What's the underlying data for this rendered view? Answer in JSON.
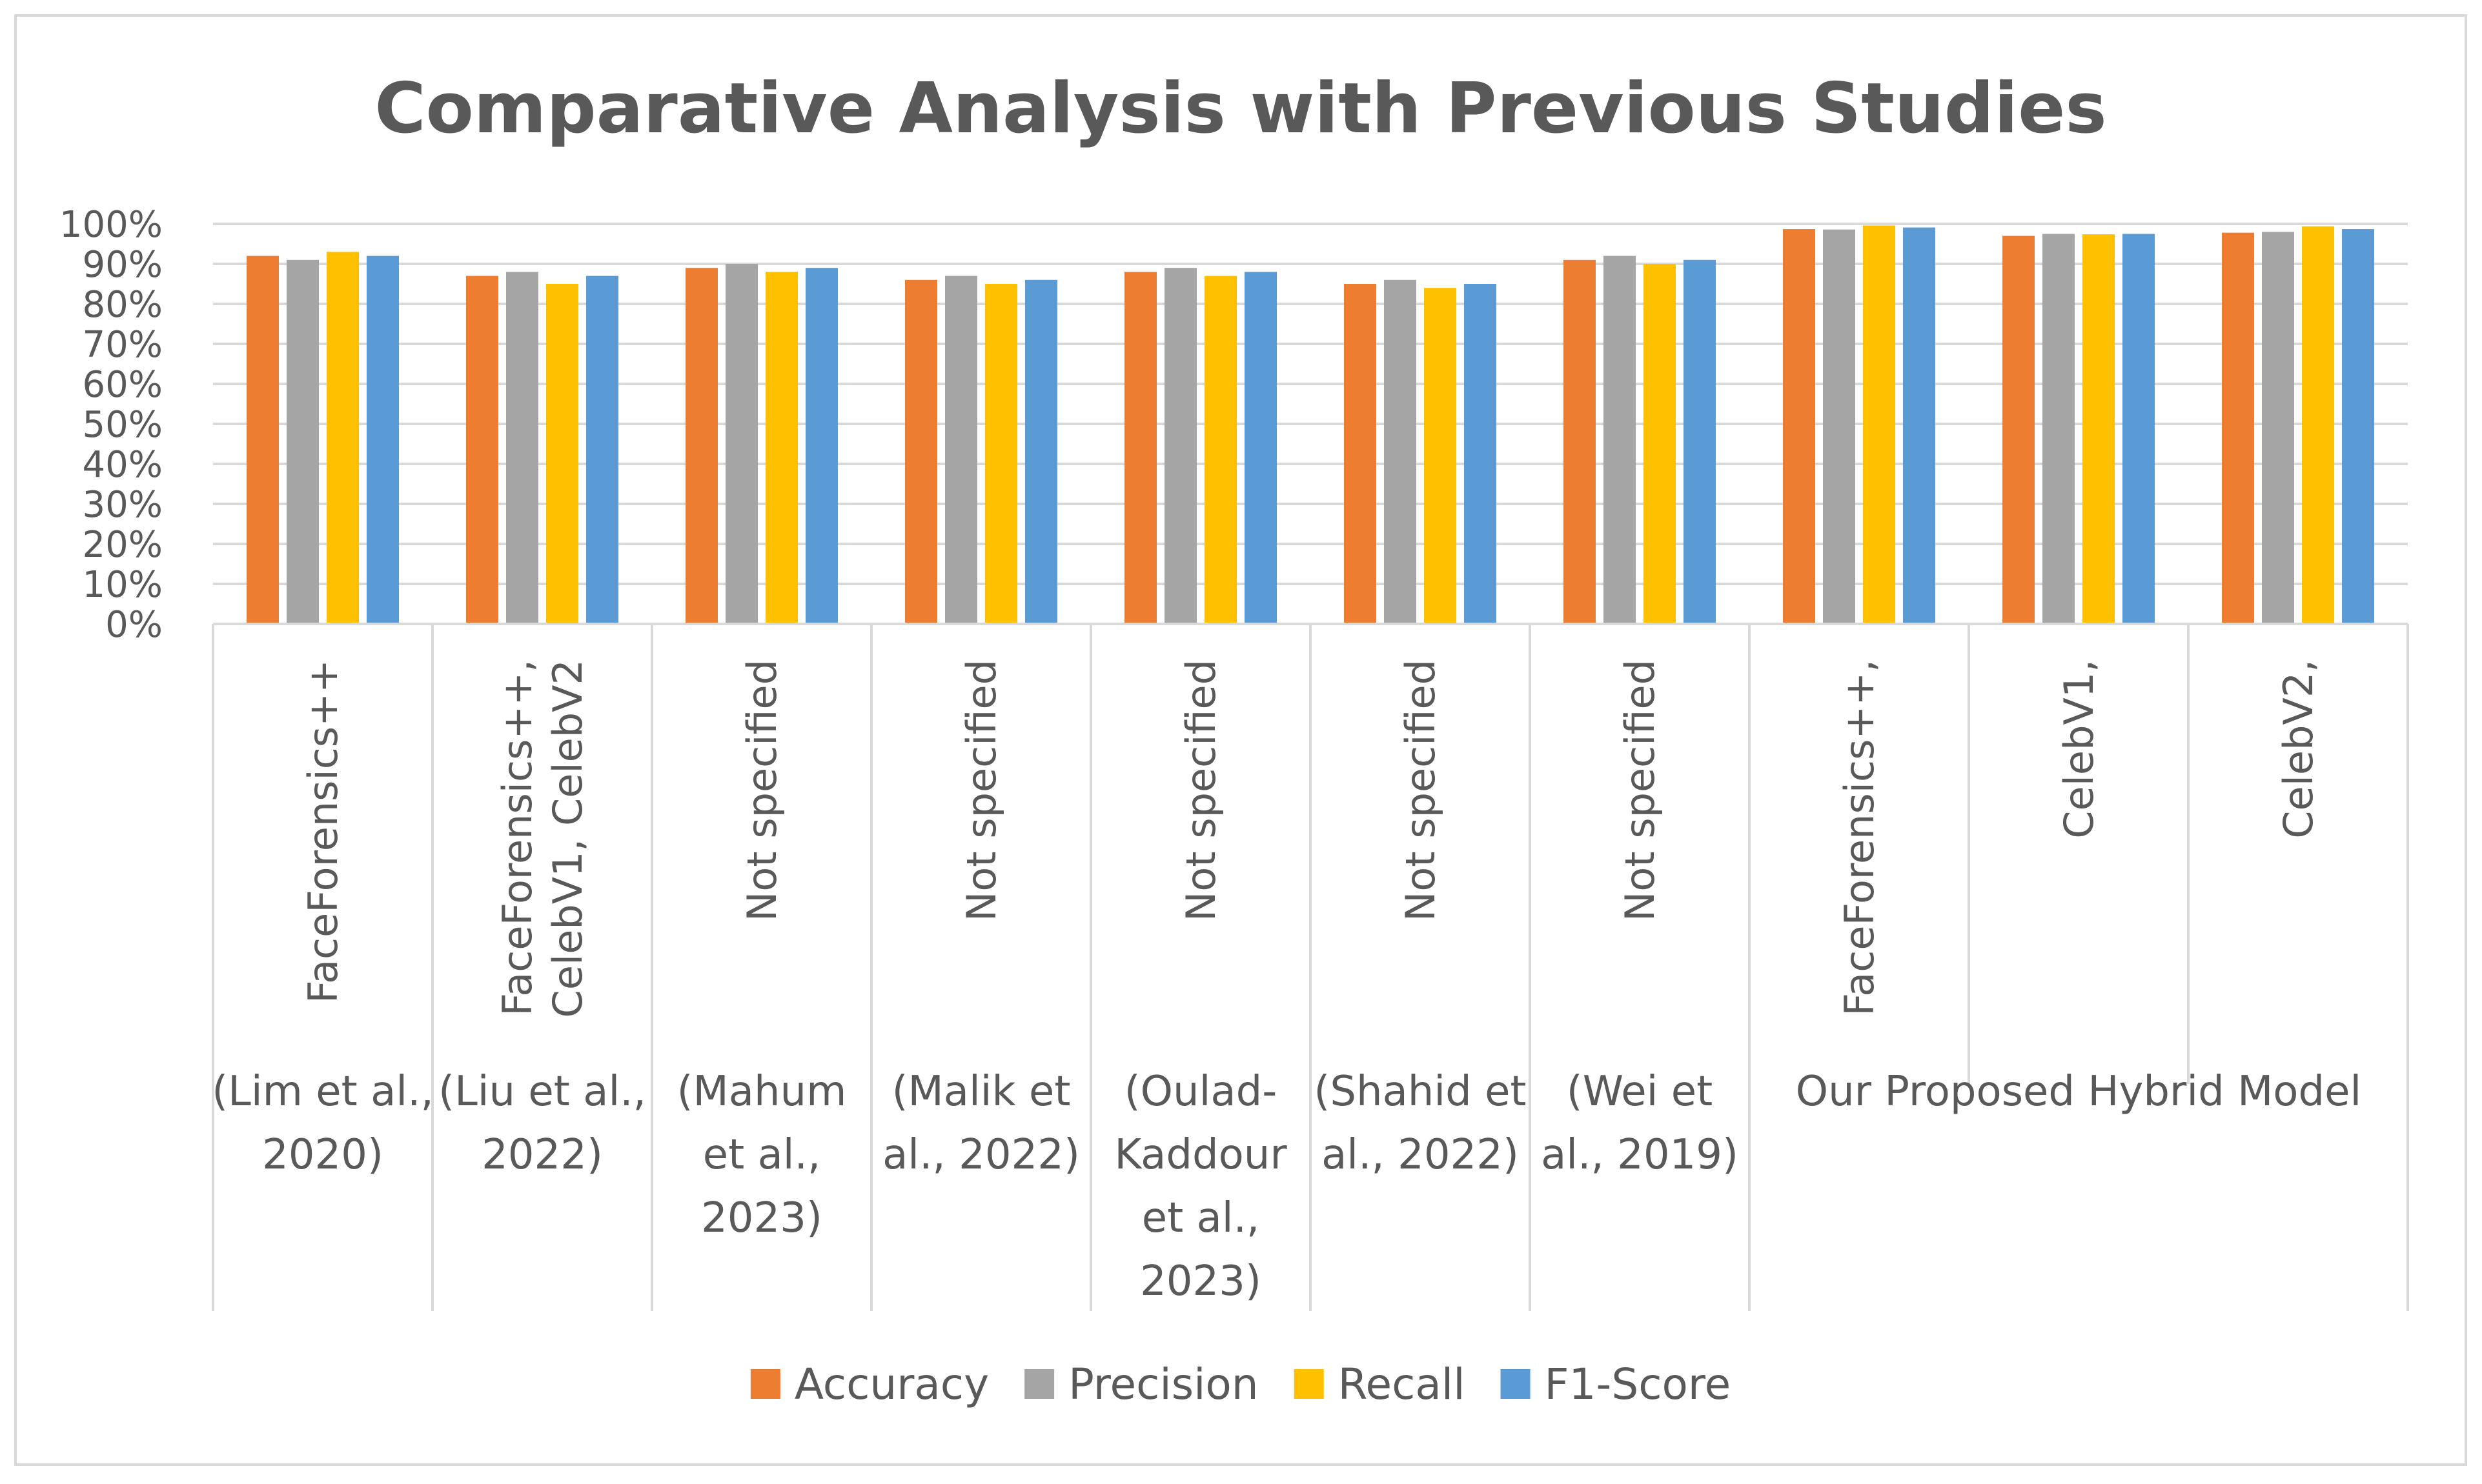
{
  "chart_data": {
    "type": "bar",
    "title": "Comparative Analysis with Previous Studies",
    "xlabel": "",
    "ylabel": "",
    "ylim": [
      0,
      100
    ],
    "y_ticks": [
      "0%",
      "10%",
      "20%",
      "30%",
      "40%",
      "50%",
      "60%",
      "70%",
      "80%",
      "90%",
      "100%"
    ],
    "grid": true,
    "legend_position": "bottom",
    "categories": [
      {
        "lines": [
          "FaceForensics++"
        ]
      },
      {
        "lines": [
          "FaceForensics++,",
          "CelebV1, CelebV2"
        ]
      },
      {
        "lines": [
          "Not specified"
        ]
      },
      {
        "lines": [
          "Not specified"
        ]
      },
      {
        "lines": [
          "Not specified"
        ]
      },
      {
        "lines": [
          "Not specified"
        ]
      },
      {
        "lines": [
          "Not specified"
        ]
      },
      {
        "lines": [
          "FaceForensics++,"
        ]
      },
      {
        "lines": [
          "CelebV1,"
        ]
      },
      {
        "lines": [
          "CelebV2,"
        ]
      }
    ],
    "groups": [
      {
        "lines": [
          "(Lim et al.,",
          "2020)"
        ],
        "span": 1
      },
      {
        "lines": [
          "(Liu et al.,",
          "2022)"
        ],
        "span": 1
      },
      {
        "lines": [
          "(Mahum",
          "et al.,",
          "2023)"
        ],
        "span": 1
      },
      {
        "lines": [
          "(Malik et",
          "al., 2022)"
        ],
        "span": 1
      },
      {
        "lines": [
          "(Oulad-",
          "Kaddour",
          "et al.,",
          "2023)"
        ],
        "span": 1
      },
      {
        "lines": [
          "(Shahid et",
          "al., 2022)"
        ],
        "span": 1
      },
      {
        "lines": [
          "(Wei et",
          "al., 2019)"
        ],
        "span": 1
      },
      {
        "lines": [
          "Our Proposed Hybrid Model"
        ],
        "span": 3
      }
    ],
    "series": [
      {
        "name": "Accuracy",
        "color": "#ed7d31",
        "values": [
          92,
          87,
          89,
          86,
          88,
          85,
          91,
          98.7,
          97,
          97.8
        ]
      },
      {
        "name": "Precision",
        "color": "#a5a5a5",
        "values": [
          91,
          88,
          90,
          87,
          89,
          86,
          92,
          98.6,
          97.5,
          98
        ]
      },
      {
        "name": "Recall",
        "color": "#ffc000",
        "values": [
          93,
          85,
          88,
          85,
          87,
          84,
          90,
          99.6,
          97.4,
          99.4
        ]
      },
      {
        "name": "F1-Score",
        "color": "#5b9bd5",
        "values": [
          92,
          87,
          89,
          86,
          88,
          85,
          91,
          99.1,
          97.5,
          98.7
        ]
      }
    ]
  }
}
